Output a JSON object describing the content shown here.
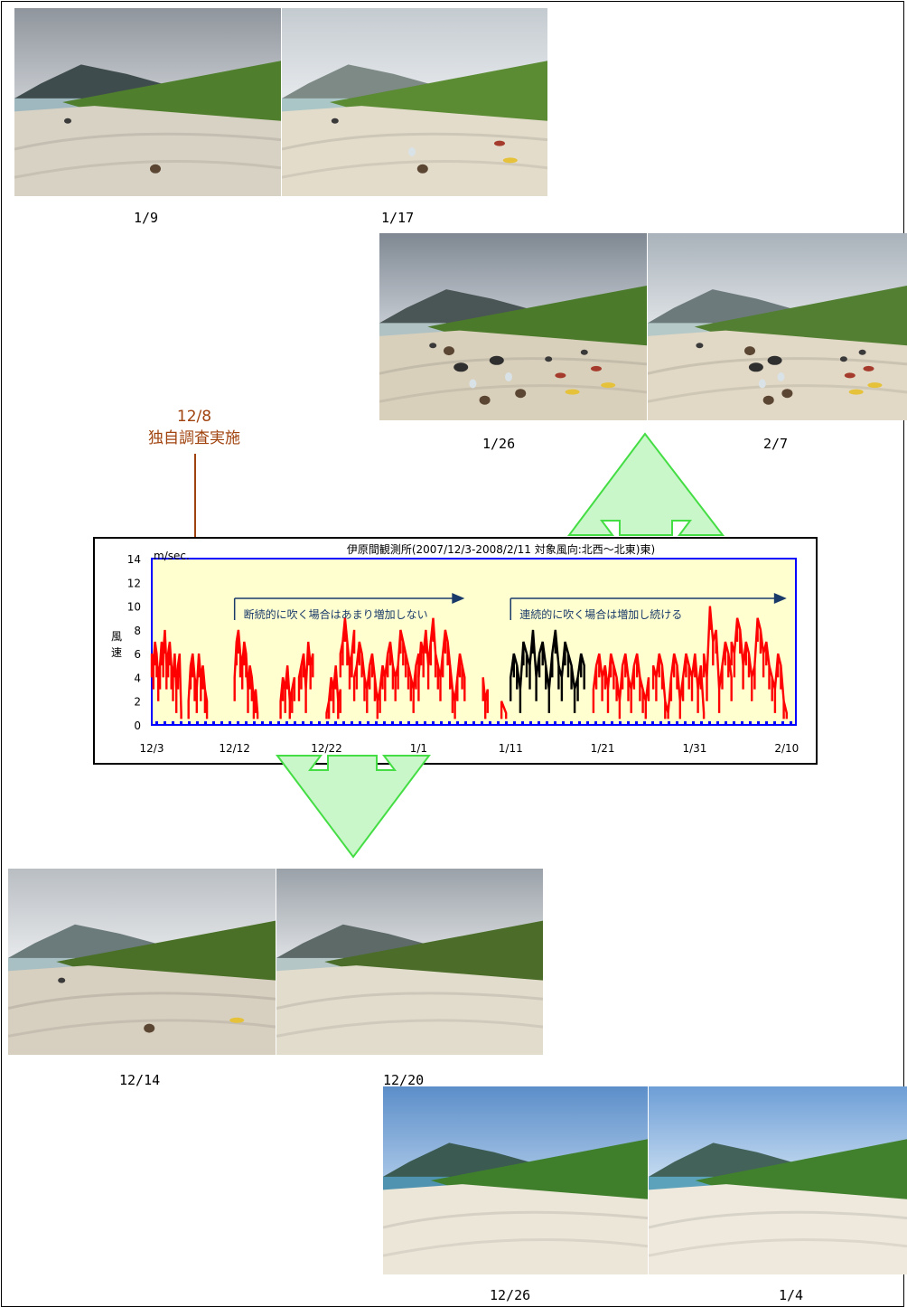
{
  "photos_top": [
    {
      "label": "1/9"
    },
    {
      "label": "1/17"
    },
    {
      "label": "1/26"
    },
    {
      "label": "2/7"
    }
  ],
  "photos_bottom": [
    {
      "label": "12/14"
    },
    {
      "label": "12/20"
    },
    {
      "label": "12/26"
    },
    {
      "label": "1/4"
    }
  ],
  "annotation": {
    "date": "12/8",
    "text": "独自調査実施"
  },
  "colors": {
    "note": "#a0430e",
    "arrow_fill": "#c9f7c9",
    "arrow_stroke": "#44dd44",
    "chart_bg": "#ffffd0",
    "chart_border": "#0000ff",
    "series_red": "#ff0000",
    "series_black": "#000000",
    "annotation_arrow": "#1a3a6a"
  },
  "chart_data": {
    "type": "line",
    "title": "伊原間観測所(2007/12/3-2008/2/11  対象風向:北西～北東)東)",
    "ylabel": "風速",
    "yunit": "m/sec.",
    "ylim": [
      0,
      14
    ],
    "yticks": [
      0,
      2,
      4,
      6,
      8,
      10,
      12,
      14
    ],
    "xlim": [
      "12/3",
      "2/11"
    ],
    "xticks": [
      "12/3",
      "12/12",
      "12/22",
      "1/1",
      "1/11",
      "1/21",
      "1/31",
      "2/10"
    ],
    "annotations": [
      {
        "text": "断続的に吹く場合はあまり増加しない",
        "from": "12/12",
        "to": "1/6"
      },
      {
        "text": "連続的に吹く場合は増加し続ける",
        "from": "1/11",
        "to": "2/10"
      }
    ],
    "series": [
      {
        "color": "red",
        "segments": [
          {
            "x0": "12/3",
            "x1": "12/6.2",
            "values": [
              6,
              5,
              7,
              6,
              4,
              5,
              7,
              6,
              8,
              5,
              6,
              7,
              5,
              4,
              6,
              3,
              5,
              6,
              1
            ]
          },
          {
            "x0": "12/7",
            "x1": "12/9",
            "values": [
              2,
              5,
              6,
              4,
              3,
              6,
              4,
              5,
              3,
              2
            ]
          },
          {
            "x0": "12/12",
            "x1": "12/14.5",
            "values": [
              4,
              7,
              8,
              6,
              5,
              7,
              6,
              3,
              5,
              4,
              2,
              3,
              1
            ]
          },
          {
            "x0": "12/17",
            "x1": "12/18.5",
            "values": [
              2,
              4,
              3,
              5,
              2,
              3,
              4
            ]
          },
          {
            "x0": "12/19",
            "x1": "12/20.5",
            "values": [
              4,
              5,
              6,
              3,
              7,
              5,
              6
            ]
          },
          {
            "x0": "12/22",
            "x1": "12/23.5",
            "values": [
              1,
              2,
              4,
              3,
              5,
              2,
              3
            ]
          },
          {
            "x0": "12/23.5",
            "x1": "12/25",
            "values": [
              6,
              7,
              9,
              7,
              5,
              6,
              8
            ]
          },
          {
            "x0": "12/25",
            "x1": "1/1",
            "values": [
              4,
              5,
              7,
              6,
              4,
              3,
              5,
              6,
              4,
              2,
              3,
              5,
              4,
              6,
              7,
              5,
              4,
              5,
              8,
              7,
              6,
              5,
              4,
              3,
              5,
              6
            ]
          },
          {
            "x0": "1/1",
            "x1": "1/6",
            "values": [
              4,
              7,
              6,
              8,
              5,
              7,
              9,
              6,
              5,
              4,
              6,
              8,
              7,
              5,
              3,
              2,
              4,
              6,
              5,
              4
            ]
          },
          {
            "x0": "1/8",
            "x1": "1/8.5",
            "values": [
              4,
              2,
              3
            ]
          },
          {
            "x0": "1/10",
            "x1": "1/10.5",
            "values": [
              2,
              1
            ]
          },
          {
            "x0": "1/20",
            "x1": "1/26",
            "values": [
              3,
              5,
              6,
              4,
              5,
              3,
              6,
              5,
              4,
              2,
              5,
              6,
              4,
              3,
              5,
              6,
              4,
              3,
              2,
              4
            ]
          },
          {
            "x0": "1/26.5",
            "x1": "2/1",
            "values": [
              5,
              4,
              6,
              5,
              2,
              1,
              4,
              6,
              5,
              2,
              4,
              6,
              5,
              4,
              6,
              3,
              5,
              1
            ]
          },
          {
            "x0": "2/1",
            "x1": "2/4",
            "values": [
              6,
              4,
              10,
              7,
              8,
              3,
              5,
              7,
              6,
              4
            ]
          },
          {
            "x0": "2/4",
            "x1": "2/10",
            "values": [
              7,
              6,
              9,
              8,
              5,
              7,
              6,
              4,
              5,
              9,
              8,
              6,
              7,
              5,
              4,
              3,
              6,
              5,
              2,
              1
            ]
          }
        ]
      },
      {
        "color": "black",
        "segments": [
          {
            "x0": "1/11",
            "x1": "1/19",
            "values": [
              4,
              6,
              5,
              3,
              7,
              6,
              5,
              8,
              4,
              6,
              7,
              5,
              3,
              6,
              8,
              5,
              4,
              7,
              6,
              5,
              3,
              4,
              6,
              5
            ]
          }
        ]
      }
    ]
  }
}
